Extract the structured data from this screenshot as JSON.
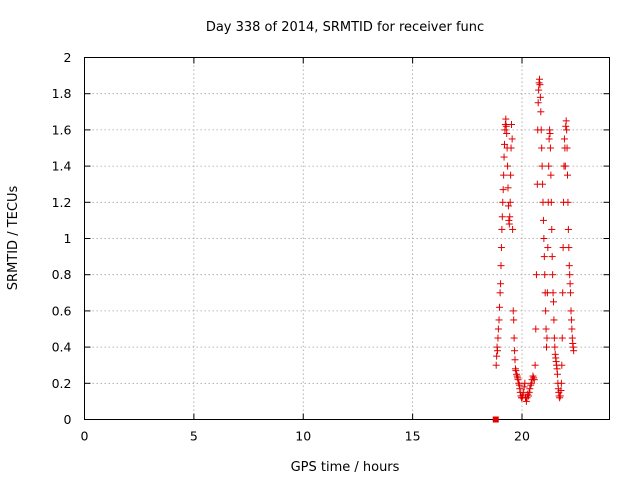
{
  "chart_data": {
    "type": "scatter",
    "title": "Day 338 of 2014, SRMTID for receiver func",
    "xlabel": "GPS time / hours",
    "ylabel": "SRMTID / TECUs",
    "xlim": [
      0,
      24
    ],
    "ylim": [
      0,
      2
    ],
    "xticks": [
      0,
      5,
      10,
      15,
      20
    ],
    "yticks": [
      0,
      0.2,
      0.4,
      0.6,
      0.8,
      1,
      1.2,
      1.4,
      1.6,
      1.8,
      2
    ],
    "grid": true,
    "marker": "+",
    "marker_color": "#e00000",
    "outlier_points": [
      {
        "x": 18.8,
        "y": 0.0
      }
    ],
    "series": [
      {
        "name": "SRMTID",
        "points": [
          {
            "x": 18.82,
            "y": 0.3
          },
          {
            "x": 18.84,
            "y": 0.35
          },
          {
            "x": 18.86,
            "y": 0.4
          },
          {
            "x": 18.88,
            "y": 0.38
          },
          {
            "x": 18.9,
            "y": 0.45
          },
          {
            "x": 18.92,
            "y": 0.5
          },
          {
            "x": 18.95,
            "y": 0.55
          },
          {
            "x": 18.97,
            "y": 0.62
          },
          {
            "x": 19.0,
            "y": 0.7
          },
          {
            "x": 19.02,
            "y": 0.75
          },
          {
            "x": 19.04,
            "y": 0.85
          },
          {
            "x": 19.06,
            "y": 0.95
          },
          {
            "x": 19.08,
            "y": 1.05
          },
          {
            "x": 19.1,
            "y": 1.12
          },
          {
            "x": 19.12,
            "y": 1.2
          },
          {
            "x": 19.14,
            "y": 1.27
          },
          {
            "x": 19.16,
            "y": 1.35
          },
          {
            "x": 19.18,
            "y": 1.45
          },
          {
            "x": 19.2,
            "y": 1.52
          },
          {
            "x": 19.22,
            "y": 1.6
          },
          {
            "x": 19.24,
            "y": 1.63
          },
          {
            "x": 19.26,
            "y": 1.66
          },
          {
            "x": 19.28,
            "y": 1.62
          },
          {
            "x": 19.3,
            "y": 1.58
          },
          {
            "x": 19.32,
            "y": 1.5
          },
          {
            "x": 19.34,
            "y": 1.4
          },
          {
            "x": 19.36,
            "y": 1.28
          },
          {
            "x": 19.38,
            "y": 1.18
          },
          {
            "x": 19.4,
            "y": 1.1
          },
          {
            "x": 19.42,
            "y": 1.08
          },
          {
            "x": 19.44,
            "y": 1.12
          },
          {
            "x": 19.46,
            "y": 1.2
          },
          {
            "x": 19.48,
            "y": 1.35
          },
          {
            "x": 19.5,
            "y": 1.5
          },
          {
            "x": 19.52,
            "y": 1.63
          },
          {
            "x": 19.55,
            "y": 1.55
          },
          {
            "x": 19.57,
            "y": 1.05
          },
          {
            "x": 19.6,
            "y": 0.6
          },
          {
            "x": 19.62,
            "y": 0.55
          },
          {
            "x": 19.64,
            "y": 0.45
          },
          {
            "x": 19.66,
            "y": 0.38
          },
          {
            "x": 19.68,
            "y": 0.33
          },
          {
            "x": 19.7,
            "y": 0.28
          },
          {
            "x": 19.72,
            "y": 0.27
          },
          {
            "x": 19.75,
            "y": 0.25
          },
          {
            "x": 19.78,
            "y": 0.24
          },
          {
            "x": 19.8,
            "y": 0.23
          },
          {
            "x": 19.82,
            "y": 0.22
          },
          {
            "x": 19.85,
            "y": 0.2
          },
          {
            "x": 19.88,
            "y": 0.19
          },
          {
            "x": 19.9,
            "y": 0.17
          },
          {
            "x": 19.92,
            "y": 0.15
          },
          {
            "x": 19.95,
            "y": 0.13
          },
          {
            "x": 19.98,
            "y": 0.12
          },
          {
            "x": 20.0,
            "y": 0.12
          },
          {
            "x": 20.03,
            "y": 0.13
          },
          {
            "x": 20.06,
            "y": 0.15
          },
          {
            "x": 20.1,
            "y": 0.18
          },
          {
            "x": 20.13,
            "y": 0.2
          },
          {
            "x": 20.16,
            "y": 0.12
          },
          {
            "x": 20.2,
            "y": 0.1
          },
          {
            "x": 20.23,
            "y": 0.12
          },
          {
            "x": 20.26,
            "y": 0.14
          },
          {
            "x": 20.3,
            "y": 0.13
          },
          {
            "x": 20.33,
            "y": 0.15
          },
          {
            "x": 20.36,
            "y": 0.17
          },
          {
            "x": 20.4,
            "y": 0.19
          },
          {
            "x": 20.43,
            "y": 0.2
          },
          {
            "x": 20.46,
            "y": 0.22
          },
          {
            "x": 20.5,
            "y": 0.24
          },
          {
            "x": 20.53,
            "y": 0.23
          },
          {
            "x": 20.56,
            "y": 0.22
          },
          {
            "x": 20.6,
            "y": 0.3
          },
          {
            "x": 20.63,
            "y": 0.5
          },
          {
            "x": 20.66,
            "y": 0.8
          },
          {
            "x": 20.7,
            "y": 1.3
          },
          {
            "x": 20.72,
            "y": 1.6
          },
          {
            "x": 20.74,
            "y": 1.75
          },
          {
            "x": 20.76,
            "y": 1.82
          },
          {
            "x": 20.78,
            "y": 1.86
          },
          {
            "x": 20.8,
            "y": 1.88
          },
          {
            "x": 20.82,
            "y": 1.85
          },
          {
            "x": 20.84,
            "y": 1.78
          },
          {
            "x": 20.86,
            "y": 1.7
          },
          {
            "x": 20.88,
            "y": 1.6
          },
          {
            "x": 20.9,
            "y": 1.5
          },
          {
            "x": 20.92,
            "y": 1.4
          },
          {
            "x": 20.94,
            "y": 1.3
          },
          {
            "x": 20.96,
            "y": 1.2
          },
          {
            "x": 20.98,
            "y": 1.1
          },
          {
            "x": 21.0,
            "y": 1.0
          },
          {
            "x": 21.02,
            "y": 0.9
          },
          {
            "x": 21.04,
            "y": 0.8
          },
          {
            "x": 21.06,
            "y": 0.7
          },
          {
            "x": 21.08,
            "y": 0.6
          },
          {
            "x": 21.1,
            "y": 0.5
          },
          {
            "x": 21.12,
            "y": 0.4
          },
          {
            "x": 21.14,
            "y": 0.45
          },
          {
            "x": 21.16,
            "y": 0.7
          },
          {
            "x": 21.18,
            "y": 0.95
          },
          {
            "x": 21.2,
            "y": 1.2
          },
          {
            "x": 21.22,
            "y": 1.4
          },
          {
            "x": 21.24,
            "y": 1.55
          },
          {
            "x": 21.26,
            "y": 1.6
          },
          {
            "x": 21.28,
            "y": 1.58
          },
          {
            "x": 21.3,
            "y": 1.5
          },
          {
            "x": 21.32,
            "y": 1.35
          },
          {
            "x": 21.34,
            "y": 1.2
          },
          {
            "x": 21.36,
            "y": 1.05
          },
          {
            "x": 21.38,
            "y": 0.9
          },
          {
            "x": 21.4,
            "y": 0.8
          },
          {
            "x": 21.42,
            "y": 0.7
          },
          {
            "x": 21.44,
            "y": 0.65
          },
          {
            "x": 21.46,
            "y": 0.55
          },
          {
            "x": 21.48,
            "y": 0.45
          },
          {
            "x": 21.5,
            "y": 0.4
          },
          {
            "x": 21.52,
            "y": 0.36
          },
          {
            "x": 21.54,
            "y": 0.34
          },
          {
            "x": 21.56,
            "y": 0.32
          },
          {
            "x": 21.58,
            "y": 0.3
          },
          {
            "x": 21.6,
            "y": 0.28
          },
          {
            "x": 21.62,
            "y": 0.25
          },
          {
            "x": 21.64,
            "y": 0.2
          },
          {
            "x": 21.66,
            "y": 0.17
          },
          {
            "x": 21.68,
            "y": 0.15
          },
          {
            "x": 21.7,
            "y": 0.13
          },
          {
            "x": 21.72,
            "y": 0.12
          },
          {
            "x": 21.75,
            "y": 0.13
          },
          {
            "x": 21.78,
            "y": 0.16
          },
          {
            "x": 21.8,
            "y": 0.2
          },
          {
            "x": 21.82,
            "y": 0.3
          },
          {
            "x": 21.84,
            "y": 0.45
          },
          {
            "x": 21.86,
            "y": 0.7
          },
          {
            "x": 21.88,
            "y": 0.95
          },
          {
            "x": 21.9,
            "y": 1.2
          },
          {
            "x": 21.92,
            "y": 1.4
          },
          {
            "x": 21.94,
            "y": 1.55
          },
          {
            "x": 21.96,
            "y": 1.5
          },
          {
            "x": 21.98,
            "y": 1.4
          },
          {
            "x": 22.0,
            "y": 1.62
          },
          {
            "x": 22.02,
            "y": 1.65
          },
          {
            "x": 22.04,
            "y": 1.6
          },
          {
            "x": 22.06,
            "y": 1.5
          },
          {
            "x": 22.08,
            "y": 1.35
          },
          {
            "x": 22.1,
            "y": 1.2
          },
          {
            "x": 22.12,
            "y": 1.05
          },
          {
            "x": 22.14,
            "y": 0.95
          },
          {
            "x": 22.16,
            "y": 0.85
          },
          {
            "x": 22.18,
            "y": 0.8
          },
          {
            "x": 22.2,
            "y": 0.75
          },
          {
            "x": 22.22,
            "y": 0.7
          },
          {
            "x": 22.24,
            "y": 0.6
          },
          {
            "x": 22.26,
            "y": 0.55
          },
          {
            "x": 22.28,
            "y": 0.5
          },
          {
            "x": 22.3,
            "y": 0.45
          },
          {
            "x": 22.32,
            "y": 0.42
          },
          {
            "x": 22.34,
            "y": 0.4
          },
          {
            "x": 22.36,
            "y": 0.38
          }
        ]
      }
    ]
  }
}
